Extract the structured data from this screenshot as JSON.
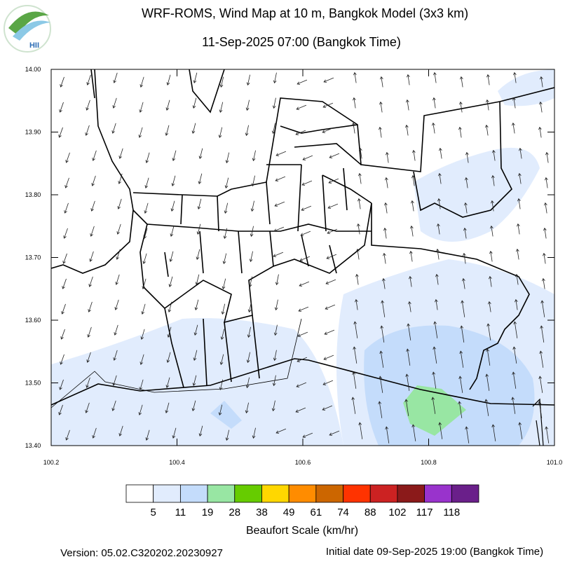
{
  "header": {
    "title": "WRF-ROMS, Wind Map at 10 m, Bangkok Model (3x3 km)",
    "subtitle": "11-Sep-2025 07:00 (Bangkok Time)"
  },
  "logo": {
    "text": "HII"
  },
  "map": {
    "xlim": [
      100.2,
      101
    ],
    "ylim": [
      13.4,
      14
    ],
    "xticks": [
      100.2,
      100.4,
      100.6,
      100.8,
      {
        "value": 101,
        "label": "101.0"
      }
    ],
    "yticks": [
      {
        "value": 14,
        "label": "14.00"
      },
      {
        "value": 13.9,
        "label": "13.90"
      },
      {
        "value": 13.8,
        "label": "13.80"
      },
      {
        "value": 13.7,
        "label": "13.70"
      },
      {
        "value": 13.6,
        "label": "13.60"
      },
      {
        "value": 13.5,
        "label": "13.50"
      },
      {
        "value": 13.4,
        "label": "13.40"
      }
    ]
  },
  "colorbar": {
    "title": "Beaufort Scale (km/hr)",
    "labels": [
      5,
      11,
      19,
      28,
      38,
      49,
      61,
      74,
      88,
      102,
      117,
      118
    ],
    "colors": [
      "#ffffff",
      "#e1ecfd",
      "#c4dcfb",
      "#98e6a3",
      "#66cc00",
      "#ffd700",
      "#ff8c00",
      "#cc6600",
      "#ff3300",
      "#cc2222",
      "#8b1a1a",
      "#9933cc",
      "#6a1f8a"
    ]
  },
  "footer": {
    "version": "Version: 05.02.C320202.20230927",
    "initial_date": "Initial date 09-Sep-2025 19:00 (Bangkok Time)"
  }
}
